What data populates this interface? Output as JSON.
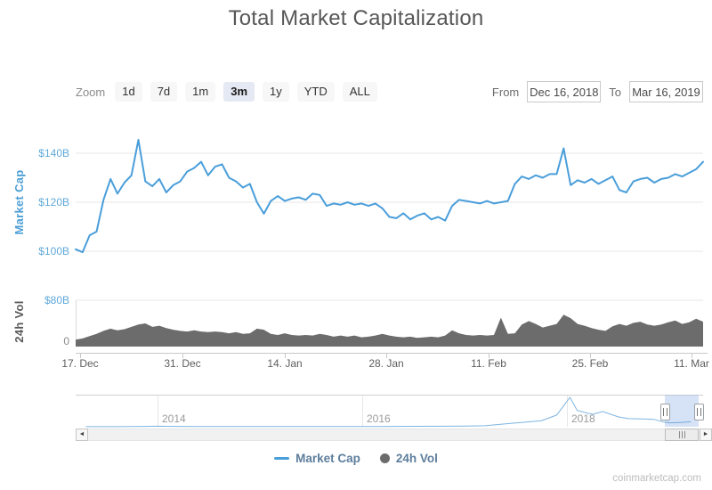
{
  "title": "Total Market Capitalization",
  "toolbar": {
    "zoom_label": "Zoom",
    "zoom_buttons": [
      {
        "label": "1d",
        "selected": false
      },
      {
        "label": "7d",
        "selected": false
      },
      {
        "label": "1m",
        "selected": false
      },
      {
        "label": "3m",
        "selected": true
      },
      {
        "label": "1y",
        "selected": false
      },
      {
        "label": "YTD",
        "selected": false
      },
      {
        "label": "ALL",
        "selected": false
      }
    ],
    "from_label": "From",
    "from_value": "Dec 16, 2018",
    "to_label": "To",
    "to_value": "Mar 16, 2019"
  },
  "axes": {
    "market_cap_title": "Market Cap",
    "market_cap_tick_labels": [
      "$140B",
      "$120B",
      "$100B",
      "$80B"
    ],
    "volume_title": "24h Vol",
    "volume_zero_label": "0",
    "x_tick_labels": [
      "17. Dec",
      "31. Dec",
      "14. Jan",
      "28. Jan",
      "11. Feb",
      "25. Feb",
      "11. Mar"
    ],
    "navigator_year_labels": [
      "2014",
      "2016",
      "2018"
    ]
  },
  "legend": {
    "items": [
      {
        "label": "Market Cap",
        "marker": "line",
        "color": "#4a9eda"
      },
      {
        "label": "24h Vol",
        "marker": "circle",
        "color": "#6c6c6c"
      }
    ]
  },
  "watermark": "coinmarketcap.com",
  "colors": {
    "line_blue": "#4a9eda",
    "axis_label_blue": "#5fa8d8",
    "volume_gray": "#6c6c6c",
    "gridline": "#e7e7e7",
    "axis_line": "#c9c9c9",
    "navigator_selection": "#5b8dd6",
    "legend_text": "#5d7d9c"
  },
  "chart_data": {
    "type": "line",
    "title": "Total Market Capitalization",
    "x": {
      "start": "Dec 16, 2018",
      "end": "Mar 16, 2019",
      "points": 91,
      "tick_labels": [
        "17. Dec",
        "31. Dec",
        "14. Jan",
        "28. Jan",
        "11. Feb",
        "25. Feb",
        "11. Mar"
      ]
    },
    "panels": [
      {
        "type": "line",
        "name": "Market Cap",
        "unit": "$B",
        "color": "#4a9eda",
        "ylim": [
          95,
          150
        ],
        "yticks": [
          100,
          120,
          140
        ],
        "ytick_labels": [
          "$100B",
          "$120B",
          "$140B"
        ],
        "values": [
          100.8,
          99.6,
          106.5,
          108.0,
          121.0,
          129.5,
          123.5,
          128.0,
          131.0,
          145.5,
          128.5,
          126.5,
          129.5,
          124.0,
          127.0,
          128.5,
          132.5,
          134.0,
          136.5,
          131.0,
          134.5,
          135.5,
          130.0,
          128.5,
          126.0,
          127.5,
          120.0,
          115.3,
          120.5,
          122.5,
          120.5,
          121.5,
          122.0,
          121.0,
          123.5,
          123.0,
          118.5,
          119.5,
          119.0,
          120.0,
          119.0,
          119.5,
          118.5,
          119.5,
          117.5,
          114.0,
          113.5,
          115.5,
          113.0,
          114.5,
          115.5,
          113.0,
          114.0,
          112.5,
          118.5,
          121.0,
          120.5,
          120.0,
          119.5,
          120.5,
          119.5,
          120.0,
          120.5,
          127.5,
          130.5,
          129.5,
          131.0,
          130.0,
          131.5,
          131.5,
          142.0,
          127.0,
          129.0,
          128.0,
          129.5,
          127.5,
          129.0,
          130.5,
          125.0,
          124.0,
          128.5,
          129.5,
          130.0,
          128.0,
          129.5,
          130.0,
          131.5,
          130.5,
          132.0,
          133.5,
          136.5
        ]
      },
      {
        "type": "area",
        "name": "24h Vol",
        "unit": "$B",
        "color": "#6c6c6c",
        "ylim": [
          0,
          80
        ],
        "yticks": [
          0,
          80
        ],
        "ytick_labels": [
          "0",
          "$80B"
        ],
        "values": [
          12,
          14,
          18,
          22,
          27,
          31,
          28,
          30,
          34,
          38,
          40,
          34,
          36,
          32,
          29,
          27,
          26,
          28,
          26,
          25,
          26,
          25,
          23,
          25,
          22,
          23,
          31,
          29,
          22,
          20,
          23,
          20,
          19,
          20,
          19,
          22,
          20,
          17,
          19,
          17,
          19,
          16,
          17,
          19,
          22,
          19,
          17,
          16,
          17,
          15,
          16,
          17,
          16,
          19,
          28,
          23,
          20,
          19,
          20,
          19,
          20,
          50,
          22,
          23,
          38,
          44,
          39,
          33,
          36,
          39,
          55,
          49,
          39,
          36,
          32,
          29,
          27,
          35,
          39,
          36,
          41,
          43,
          38,
          36,
          38,
          42,
          45,
          39,
          42,
          48,
          43
        ]
      }
    ],
    "navigator": {
      "year_labels": [
        "2014",
        "2016",
        "2018"
      ],
      "selected_range": [
        "Dec 16, 2018",
        "Mar 16, 2019"
      ],
      "series_year_value": [
        [
          2013.3,
          1.5
        ],
        [
          2013.6,
          1.3
        ],
        [
          2013.9,
          10
        ],
        [
          2014.0,
          14
        ],
        [
          2014.15,
          9
        ],
        [
          2014.4,
          7
        ],
        [
          2014.7,
          6
        ],
        [
          2015.0,
          5
        ],
        [
          2015.3,
          4.2
        ],
        [
          2015.6,
          4.5
        ],
        [
          2015.9,
          6.5
        ],
        [
          2016.2,
          8.5
        ],
        [
          2016.5,
          12
        ],
        [
          2016.8,
          14
        ],
        [
          2017.0,
          18
        ],
        [
          2017.2,
          28
        ],
        [
          2017.4,
          80
        ],
        [
          2017.6,
          130
        ],
        [
          2017.75,
          170
        ],
        [
          2017.9,
          330
        ],
        [
          2017.97,
          600
        ],
        [
          2018.03,
          830
        ],
        [
          2018.1,
          460
        ],
        [
          2018.25,
          350
        ],
        [
          2018.35,
          430
        ],
        [
          2018.5,
          280
        ],
        [
          2018.6,
          230
        ],
        [
          2018.75,
          220
        ],
        [
          2018.85,
          210
        ],
        [
          2018.95,
          130
        ],
        [
          2019.0,
          110
        ],
        [
          2019.1,
          120
        ],
        [
          2019.21,
          140
        ]
      ]
    },
    "legend_entries": [
      "Market Cap",
      "24h Vol"
    ],
    "grid": true
  }
}
